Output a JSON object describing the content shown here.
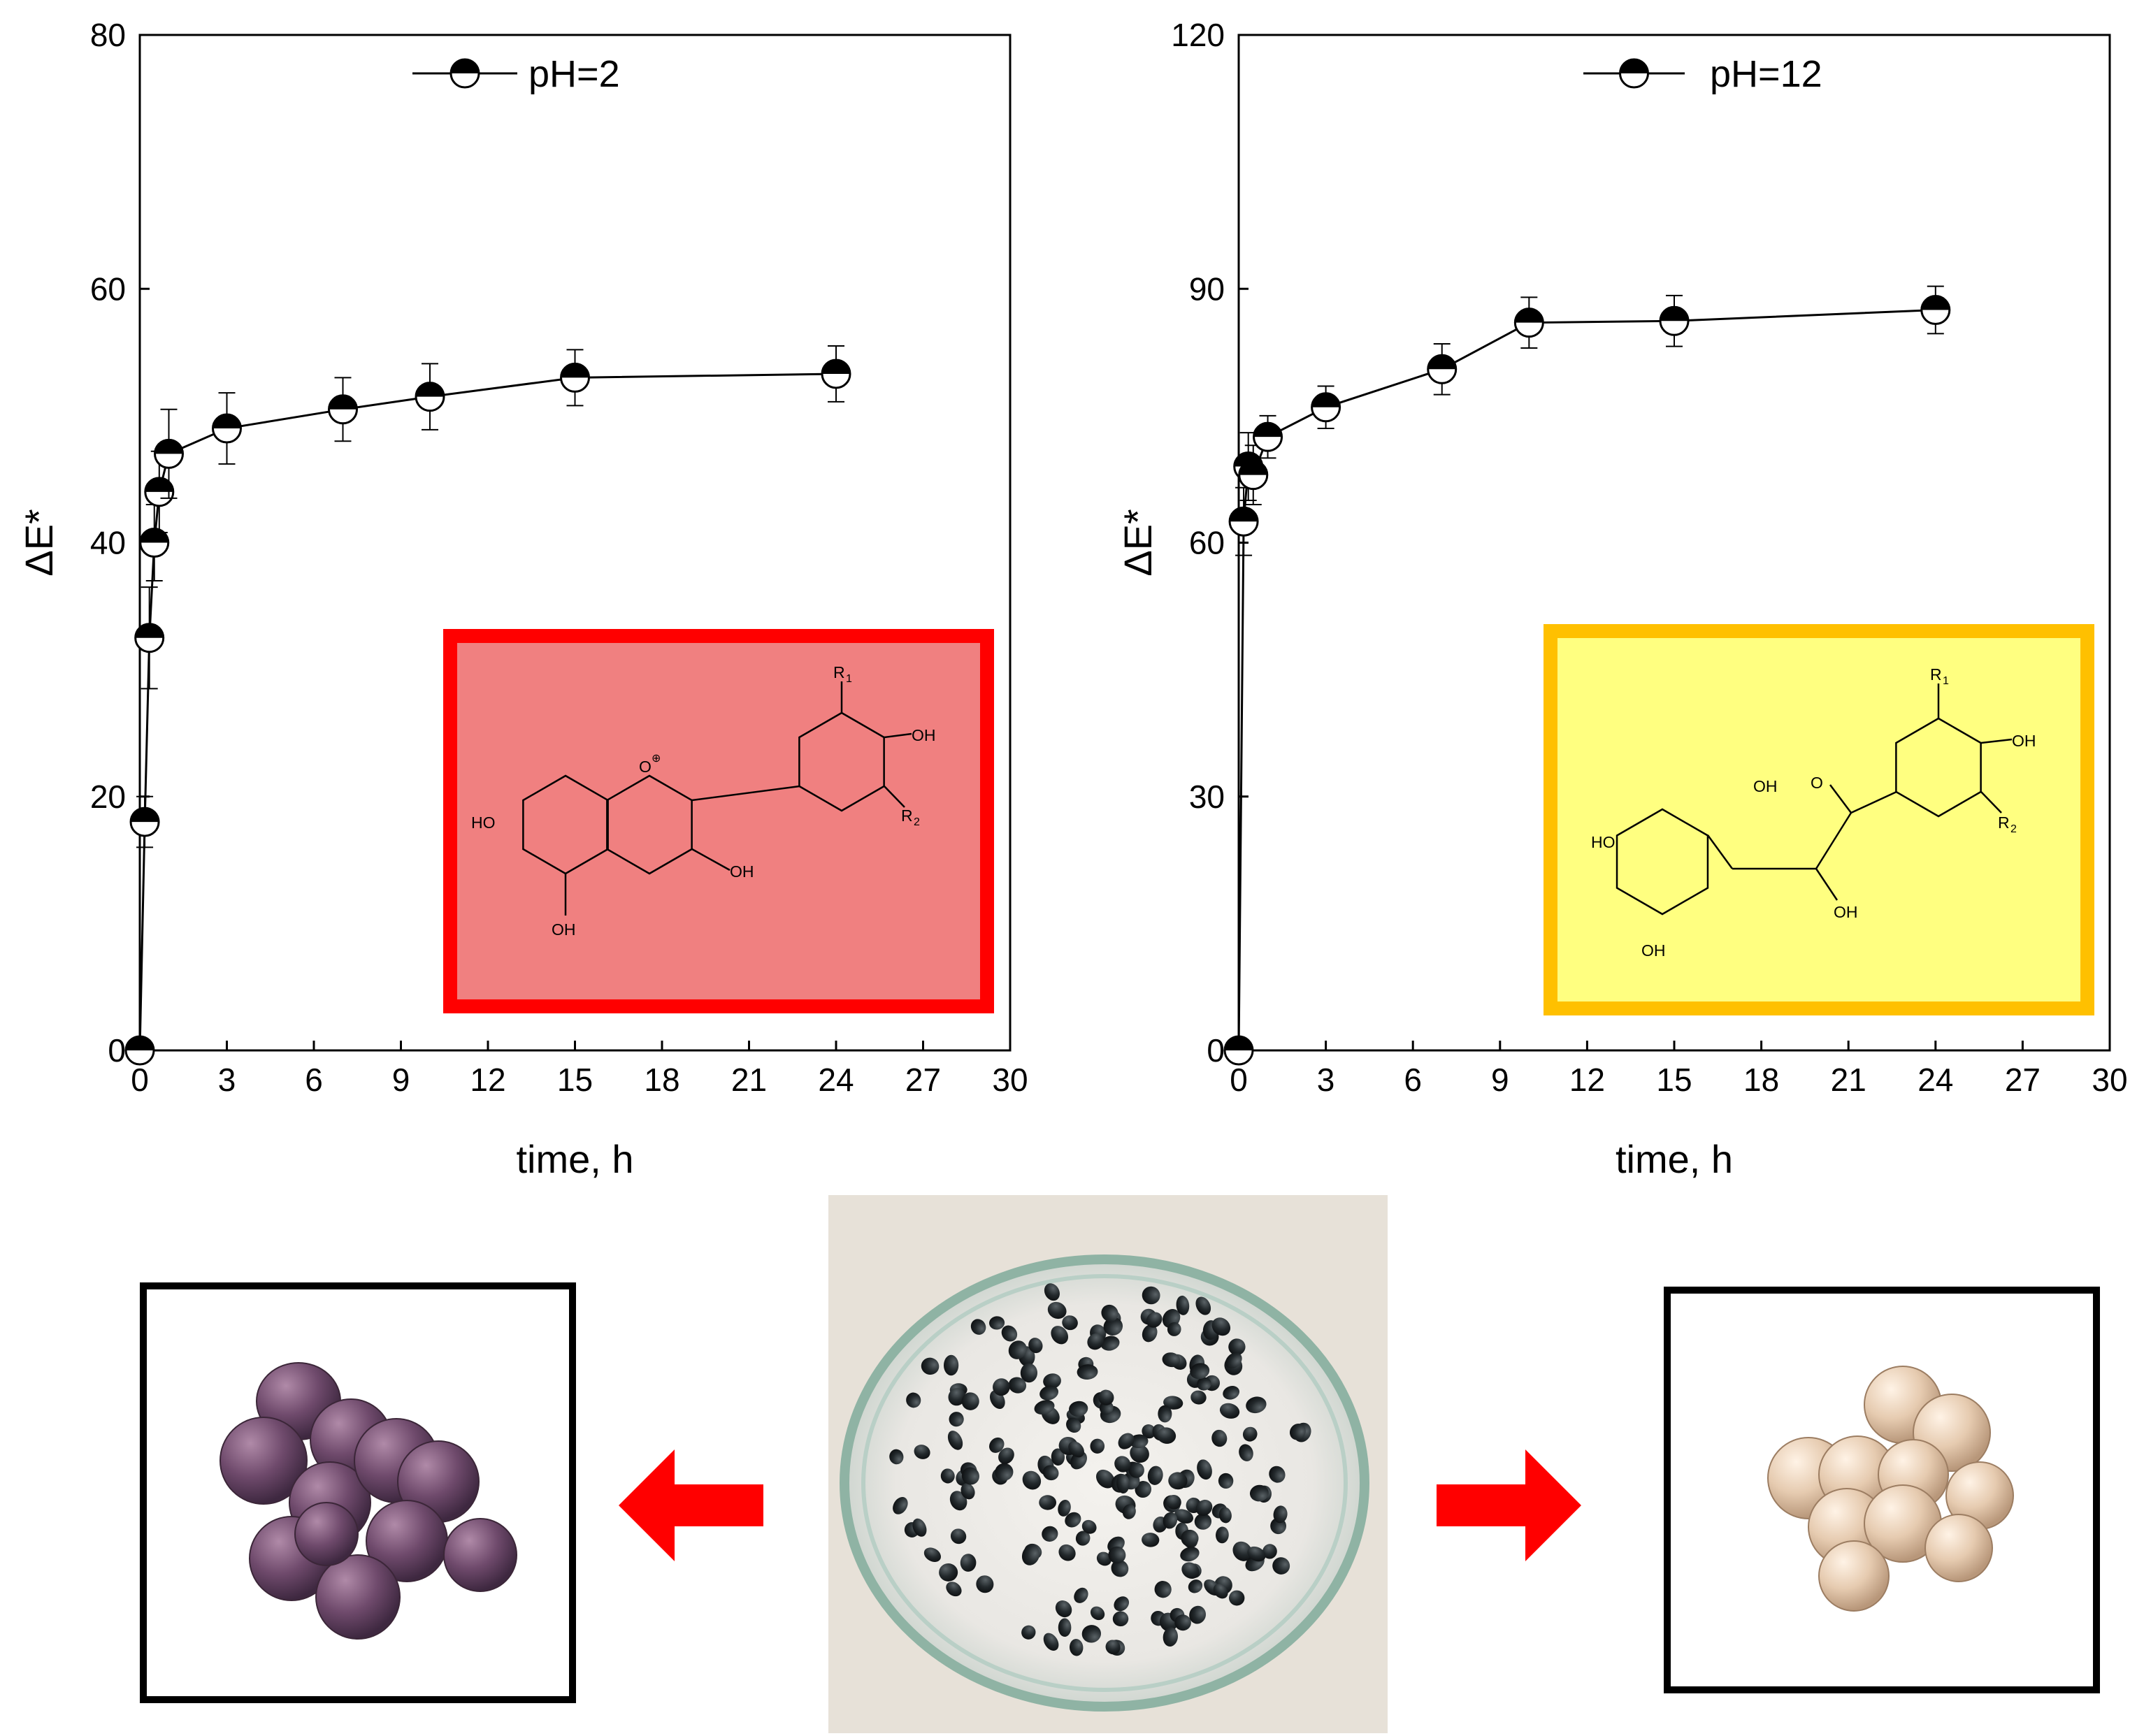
{
  "chart_data": [
    {
      "type": "line",
      "xlabel": "time, h",
      "ylabel": "ΔE*",
      "xlim": [
        0,
        30
      ],
      "ylim": [
        0,
        80
      ],
      "xticks": [
        0,
        3,
        6,
        9,
        12,
        15,
        18,
        21,
        24,
        27,
        30
      ],
      "yticks": [
        0,
        20,
        40,
        60,
        80
      ],
      "legend_position": "top-center",
      "series": [
        {
          "name": "pH=2",
          "x": [
            0,
            0.17,
            0.33,
            0.5,
            0.67,
            1,
            3,
            7,
            10,
            15,
            24
          ],
          "y": [
            0,
            18,
            32.5,
            40,
            44,
            47,
            49,
            50.5,
            51.5,
            53,
            53.3
          ],
          "err": [
            0,
            2,
            4,
            3,
            3.2,
            3.5,
            2.8,
            2.5,
            2.6,
            2.2,
            2.2
          ]
        }
      ],
      "inset": {
        "border_color": "#ff0000",
        "fill_color": "#f08080",
        "labels": [
          "R",
          "1",
          "OH",
          "HO",
          "O",
          "⊕",
          "R",
          "2",
          "OH",
          "OH"
        ]
      }
    },
    {
      "type": "line",
      "xlabel": "time, h",
      "ylabel": "ΔE*",
      "xlim": [
        0,
        30
      ],
      "ylim": [
        0,
        120
      ],
      "xticks": [
        0,
        3,
        6,
        9,
        12,
        15,
        18,
        21,
        24,
        27,
        30
      ],
      "yticks": [
        0,
        30,
        60,
        90,
        120
      ],
      "legend_position": "top-center",
      "series": [
        {
          "name": "pH=12",
          "x": [
            0,
            0.17,
            0.33,
            0.5,
            1,
            3,
            7,
            10,
            15,
            24
          ],
          "y": [
            0,
            62.5,
            69,
            68,
            72.5,
            76,
            80.5,
            86,
            86.2,
            87.5
          ],
          "err": [
            0,
            4,
            4,
            3.5,
            2.5,
            2.5,
            3,
            3,
            3,
            2.8
          ]
        }
      ],
      "inset": {
        "border_color": "#ffc000",
        "fill_color": "#ffff80",
        "labels": [
          "R",
          "1",
          "OH",
          "OH",
          "HO",
          "O",
          "R",
          "2",
          "OH",
          "OH"
        ]
      }
    }
  ],
  "colors": {
    "red_arrow": "#ff0000",
    "red_box_border": "#ff0000",
    "red_box_fill": "#f08080",
    "yellow_box_border": "#ffc000",
    "yellow_box_fill": "#ffff80"
  },
  "photos": {
    "left": "purple-beads",
    "center": "black-beads-in-petri-dish",
    "right": "beige-beads"
  }
}
